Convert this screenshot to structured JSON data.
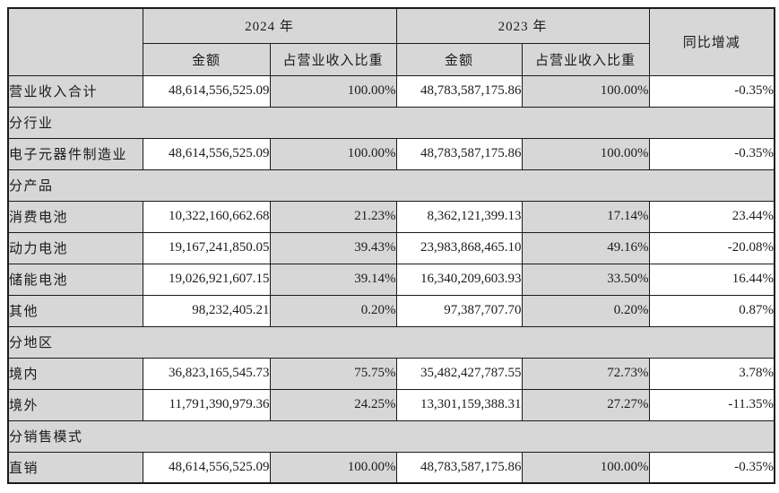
{
  "table": {
    "header": {
      "year_2024": "2024 年",
      "year_2023": "2023 年",
      "yoy": "同比增减",
      "amount": "金额",
      "ratio": "占营业收入比重"
    },
    "rows": [
      {
        "type": "data",
        "label": "营业收入合计",
        "a2024": "48,614,556,525.09",
        "p2024": "100.00%",
        "a2023": "48,783,587,175.86",
        "p2023": "100.00%",
        "yoy": "-0.35%"
      },
      {
        "type": "section",
        "label": "分行业"
      },
      {
        "type": "data",
        "label": "电子元器件制造业",
        "a2024": "48,614,556,525.09",
        "p2024": "100.00%",
        "a2023": "48,783,587,175.86",
        "p2023": "100.00%",
        "yoy": "-0.35%"
      },
      {
        "type": "section",
        "label": "分产品"
      },
      {
        "type": "data",
        "label": "消费电池",
        "a2024": "10,322,160,662.68",
        "p2024": "21.23%",
        "a2023": "8,362,121,399.13",
        "p2023": "17.14%",
        "yoy": "23.44%"
      },
      {
        "type": "data",
        "label": "动力电池",
        "a2024": "19,167,241,850.05",
        "p2024": "39.43%",
        "a2023": "23,983,868,465.10",
        "p2023": "49.16%",
        "yoy": "-20.08%"
      },
      {
        "type": "data",
        "label": "储能电池",
        "a2024": "19,026,921,607.15",
        "p2024": "39.14%",
        "a2023": "16,340,209,603.93",
        "p2023": "33.50%",
        "yoy": "16.44%"
      },
      {
        "type": "data",
        "label": "其他",
        "a2024": "98,232,405.21",
        "p2024": "0.20%",
        "a2023": "97,387,707.70",
        "p2023": "0.20%",
        "yoy": "0.87%"
      },
      {
        "type": "section",
        "label": "分地区"
      },
      {
        "type": "data",
        "label": "境内",
        "a2024": "36,823,165,545.73",
        "p2024": "75.75%",
        "a2023": "35,482,427,787.55",
        "p2023": "72.73%",
        "yoy": "3.78%"
      },
      {
        "type": "data",
        "label": "境外",
        "a2024": "11,791,390,979.36",
        "p2024": "24.25%",
        "a2023": "13,301,159,388.31",
        "p2023": "27.27%",
        "yoy": "-11.35%"
      },
      {
        "type": "section",
        "label": "分销售模式"
      },
      {
        "type": "data",
        "label": "直销",
        "a2024": "48,614,556,525.09",
        "p2024": "100.00%",
        "a2023": "48,783,587,175.86",
        "p2023": "100.00%",
        "yoy": "-0.35%"
      }
    ],
    "colors": {
      "cell_gray": "#d7d7d7",
      "cell_white": "#ffffff",
      "border": "#1a1a1a",
      "text": "#1b1b1b"
    }
  }
}
